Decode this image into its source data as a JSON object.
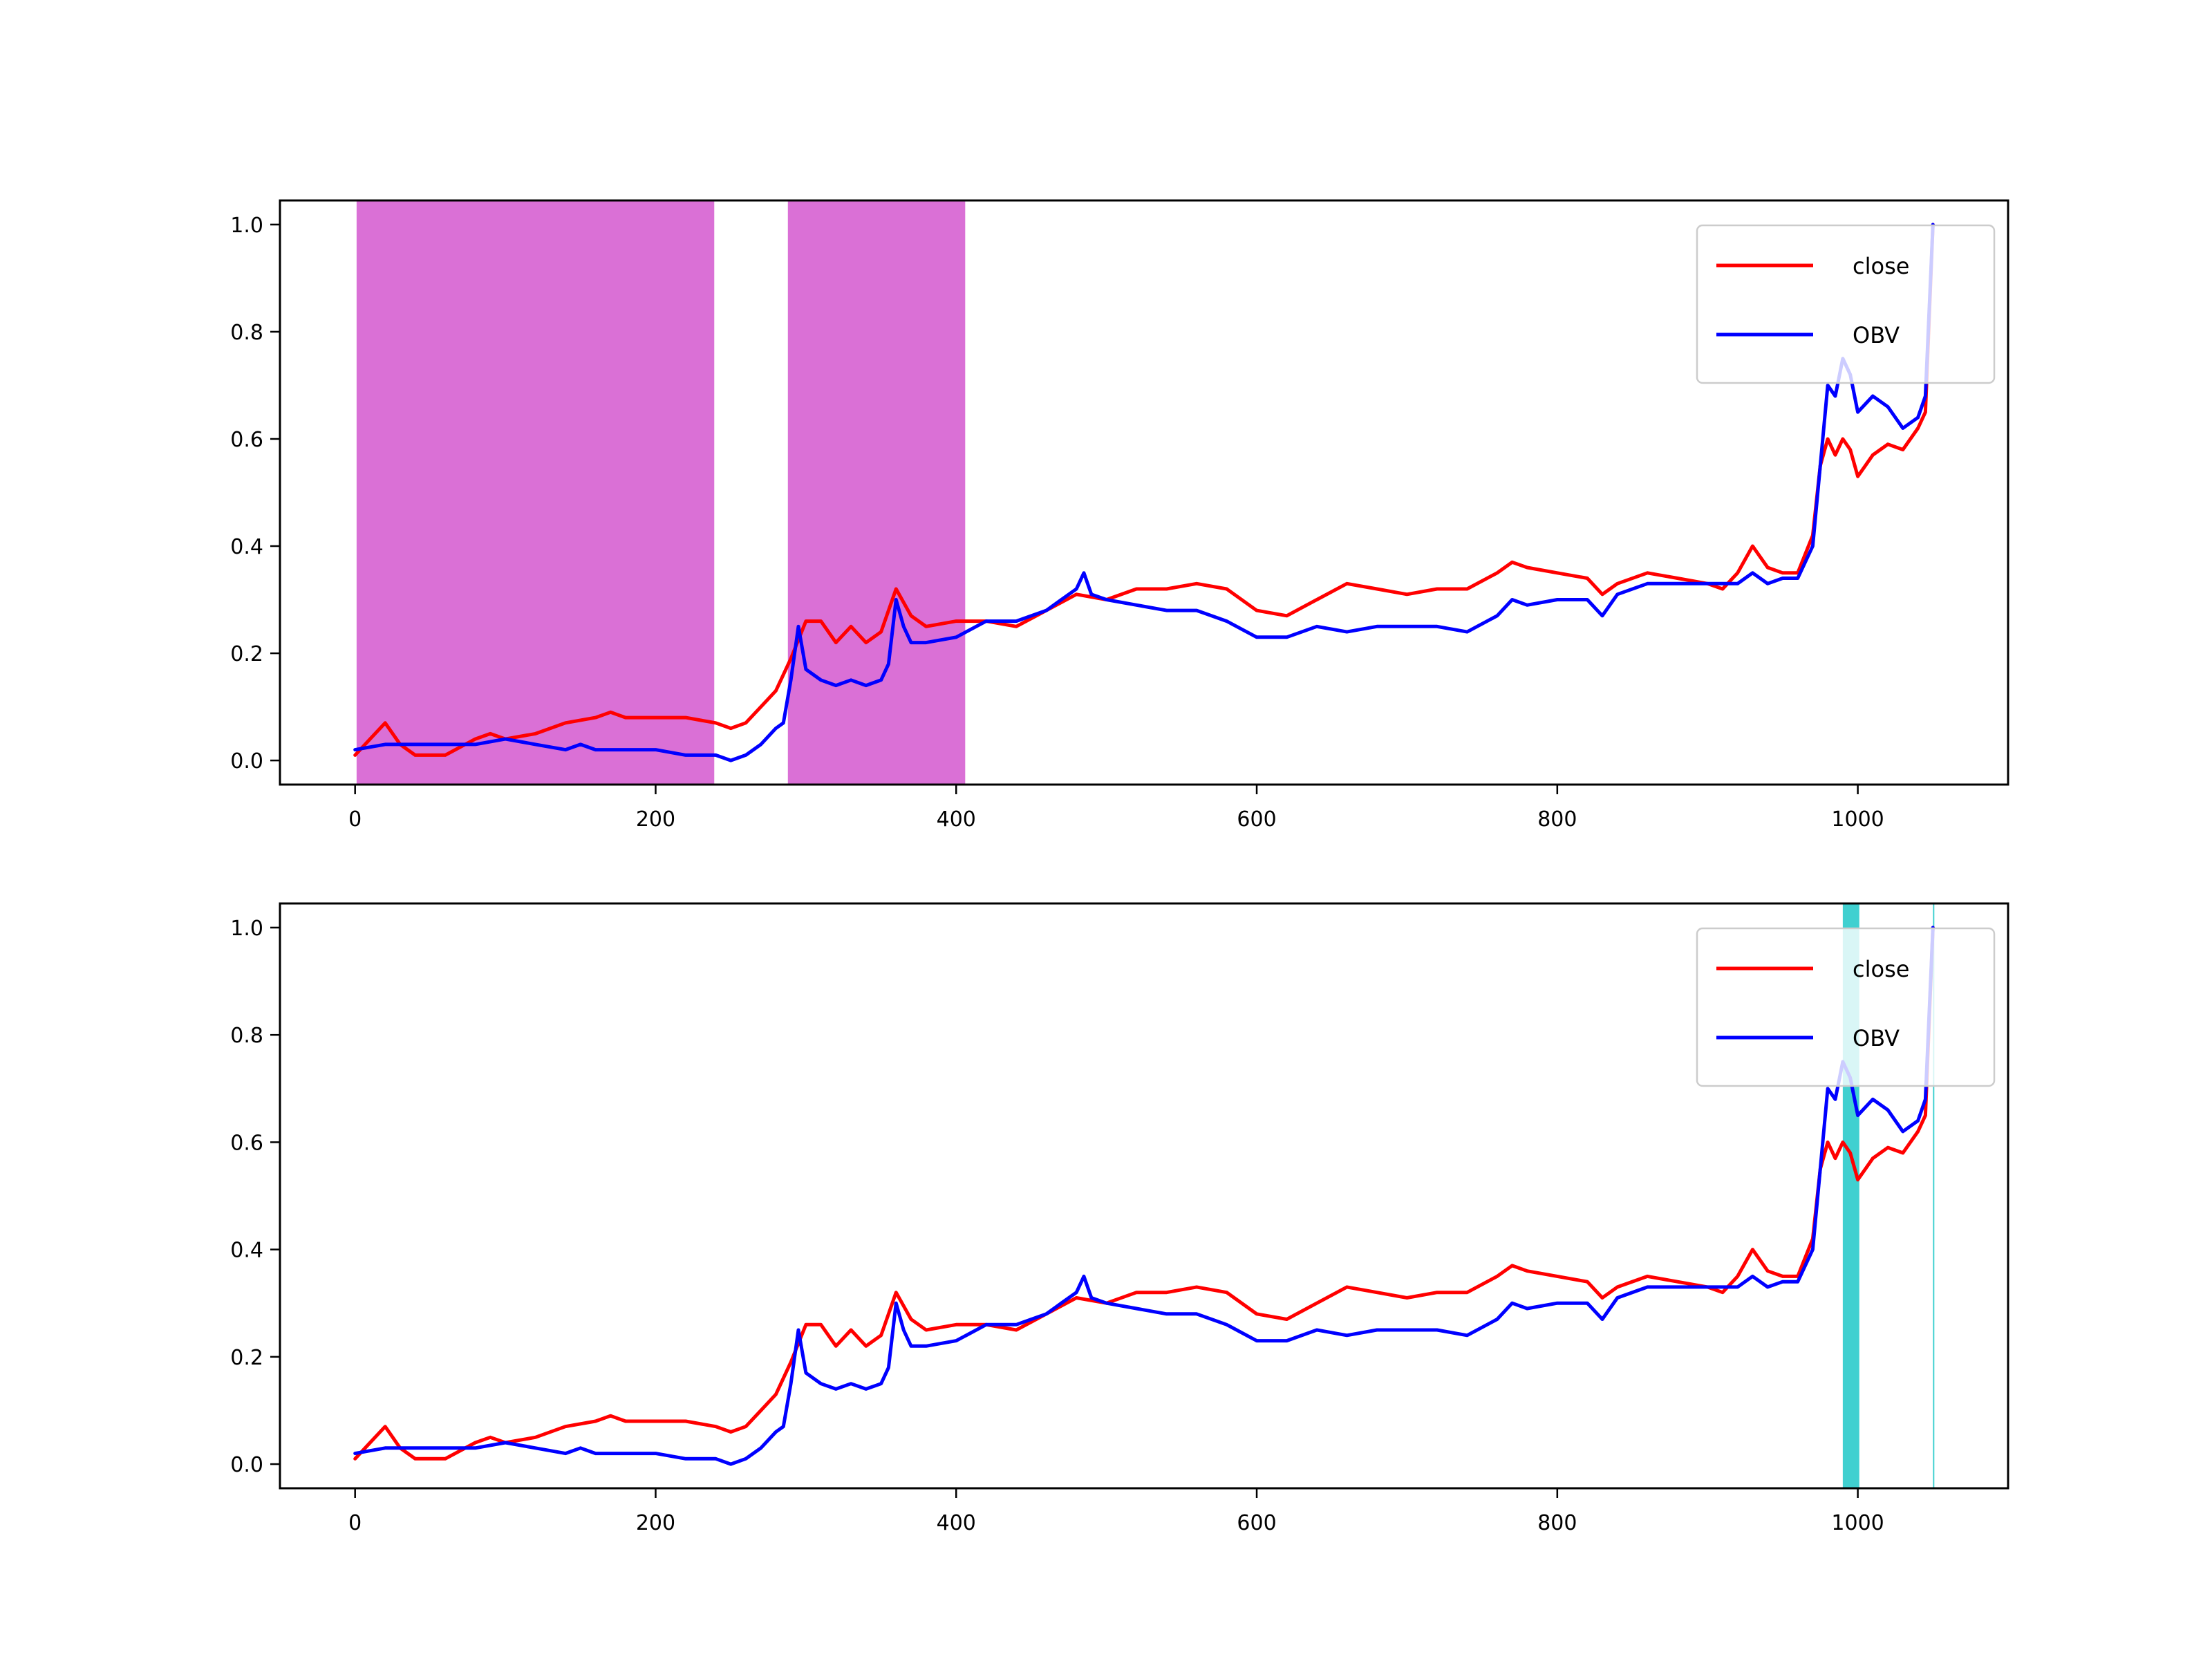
{
  "colors": {
    "close": "#ff0000",
    "obv": "#0000ff",
    "buy_region": "#da70d6",
    "sell_region": "#40d0d0",
    "frame": "#000000"
  },
  "chart_data": [
    {
      "type": "line",
      "title": "",
      "xlim": [
        -50,
        1100
      ],
      "ylim": [
        -0.045,
        1.045
      ],
      "x_ticks": [
        0,
        200,
        400,
        600,
        800,
        1000
      ],
      "y_ticks": [
        0.0,
        0.2,
        0.4,
        0.6,
        0.8,
        1.0
      ],
      "x_tick_labels": [
        "0",
        "200",
        "400",
        "600",
        "800",
        "1000"
      ],
      "y_tick_labels": [
        "0.0",
        "0.2",
        "0.4",
        "0.6",
        "0.8",
        "1.0"
      ],
      "legend": {
        "position": "top-right",
        "entries": [
          "close",
          "OBV"
        ]
      },
      "shaded_regions": [
        {
          "x_start": 1,
          "x_end": 239,
          "color_key": "buy_region"
        },
        {
          "x_start": 288,
          "x_end": 406,
          "color_key": "buy_region"
        }
      ],
      "series": [
        {
          "name": "close",
          "color_key": "close",
          "x": [
            0,
            10,
            20,
            30,
            40,
            60,
            80,
            90,
            100,
            120,
            140,
            160,
            170,
            180,
            200,
            220,
            240,
            250,
            260,
            270,
            280,
            290,
            300,
            310,
            320,
            330,
            340,
            350,
            360,
            370,
            380,
            400,
            420,
            440,
            460,
            480,
            500,
            520,
            540,
            560,
            580,
            600,
            620,
            640,
            660,
            680,
            700,
            720,
            740,
            760,
            770,
            780,
            800,
            820,
            830,
            840,
            860,
            880,
            900,
            910,
            920,
            930,
            940,
            950,
            960,
            970,
            975,
            980,
            985,
            990,
            995,
            1000,
            1005,
            1010,
            1020,
            1030,
            1040,
            1045,
            1050
          ],
          "values": [
            0.01,
            0.04,
            0.07,
            0.03,
            0.01,
            0.01,
            0.04,
            0.05,
            0.04,
            0.05,
            0.07,
            0.08,
            0.09,
            0.08,
            0.08,
            0.08,
            0.07,
            0.06,
            0.07,
            0.1,
            0.13,
            0.19,
            0.26,
            0.26,
            0.22,
            0.25,
            0.22,
            0.24,
            0.32,
            0.27,
            0.25,
            0.26,
            0.26,
            0.25,
            0.28,
            0.31,
            0.3,
            0.32,
            0.32,
            0.33,
            0.32,
            0.28,
            0.27,
            0.3,
            0.33,
            0.32,
            0.31,
            0.32,
            0.32,
            0.35,
            0.37,
            0.36,
            0.35,
            0.34,
            0.31,
            0.33,
            0.35,
            0.34,
            0.33,
            0.32,
            0.35,
            0.4,
            0.36,
            0.35,
            0.35,
            0.42,
            0.55,
            0.6,
            0.57,
            0.6,
            0.58,
            0.53,
            0.55,
            0.57,
            0.59,
            0.58,
            0.62,
            0.65,
            1.0
          ]
        },
        {
          "name": "OBV",
          "color_key": "obv",
          "x": [
            0,
            20,
            40,
            60,
            80,
            100,
            120,
            140,
            150,
            160,
            180,
            200,
            220,
            240,
            250,
            260,
            270,
            280,
            285,
            290,
            295,
            300,
            310,
            320,
            330,
            340,
            350,
            355,
            360,
            365,
            370,
            380,
            400,
            420,
            440,
            460,
            470,
            480,
            485,
            490,
            500,
            520,
            540,
            560,
            580,
            600,
            620,
            640,
            660,
            680,
            700,
            720,
            740,
            760,
            770,
            780,
            800,
            820,
            830,
            840,
            860,
            880,
            900,
            920,
            930,
            940,
            950,
            960,
            970,
            975,
            980,
            985,
            990,
            995,
            1000,
            1010,
            1020,
            1030,
            1040,
            1045,
            1050
          ],
          "values": [
            0.02,
            0.03,
            0.03,
            0.03,
            0.03,
            0.04,
            0.03,
            0.02,
            0.03,
            0.02,
            0.02,
            0.02,
            0.01,
            0.01,
            0.0,
            0.01,
            0.03,
            0.06,
            0.07,
            0.15,
            0.25,
            0.17,
            0.15,
            0.14,
            0.15,
            0.14,
            0.15,
            0.18,
            0.3,
            0.25,
            0.22,
            0.22,
            0.23,
            0.26,
            0.26,
            0.28,
            0.3,
            0.32,
            0.35,
            0.31,
            0.3,
            0.29,
            0.28,
            0.28,
            0.26,
            0.23,
            0.23,
            0.25,
            0.24,
            0.25,
            0.25,
            0.25,
            0.24,
            0.27,
            0.3,
            0.29,
            0.3,
            0.3,
            0.27,
            0.31,
            0.33,
            0.33,
            0.33,
            0.33,
            0.35,
            0.33,
            0.34,
            0.34,
            0.4,
            0.55,
            0.7,
            0.68,
            0.75,
            0.72,
            0.65,
            0.68,
            0.66,
            0.62,
            0.64,
            0.68,
            1.0
          ]
        }
      ]
    },
    {
      "type": "line",
      "title": "",
      "xlim": [
        -50,
        1100
      ],
      "ylim": [
        -0.045,
        1.045
      ],
      "x_ticks": [
        0,
        200,
        400,
        600,
        800,
        1000
      ],
      "y_ticks": [
        0.0,
        0.2,
        0.4,
        0.6,
        0.8,
        1.0
      ],
      "x_tick_labels": [
        "0",
        "200",
        "400",
        "600",
        "800",
        "1000"
      ],
      "y_tick_labels": [
        "0.0",
        "0.2",
        "0.4",
        "0.6",
        "0.8",
        "1.0"
      ],
      "legend": {
        "position": "top-right",
        "entries": [
          "close",
          "OBV"
        ]
      },
      "shaded_regions": [
        {
          "x_start": 990,
          "x_end": 1001,
          "color_key": "sell_region"
        },
        {
          "x_start": 1050,
          "x_end": 1050.5,
          "color_key": "sell_region"
        }
      ],
      "series": [
        {
          "name": "close",
          "color_key": "close",
          "x": [
            0,
            10,
            20,
            30,
            40,
            60,
            80,
            90,
            100,
            120,
            140,
            160,
            170,
            180,
            200,
            220,
            240,
            250,
            260,
            270,
            280,
            290,
            300,
            310,
            320,
            330,
            340,
            350,
            360,
            370,
            380,
            400,
            420,
            440,
            460,
            480,
            500,
            520,
            540,
            560,
            580,
            600,
            620,
            640,
            660,
            680,
            700,
            720,
            740,
            760,
            770,
            780,
            800,
            820,
            830,
            840,
            860,
            880,
            900,
            910,
            920,
            930,
            940,
            950,
            960,
            970,
            975,
            980,
            985,
            990,
            995,
            1000,
            1005,
            1010,
            1020,
            1030,
            1040,
            1045,
            1050
          ],
          "values": [
            0.01,
            0.04,
            0.07,
            0.03,
            0.01,
            0.01,
            0.04,
            0.05,
            0.04,
            0.05,
            0.07,
            0.08,
            0.09,
            0.08,
            0.08,
            0.08,
            0.07,
            0.06,
            0.07,
            0.1,
            0.13,
            0.19,
            0.26,
            0.26,
            0.22,
            0.25,
            0.22,
            0.24,
            0.32,
            0.27,
            0.25,
            0.26,
            0.26,
            0.25,
            0.28,
            0.31,
            0.3,
            0.32,
            0.32,
            0.33,
            0.32,
            0.28,
            0.27,
            0.3,
            0.33,
            0.32,
            0.31,
            0.32,
            0.32,
            0.35,
            0.37,
            0.36,
            0.35,
            0.34,
            0.31,
            0.33,
            0.35,
            0.34,
            0.33,
            0.32,
            0.35,
            0.4,
            0.36,
            0.35,
            0.35,
            0.42,
            0.55,
            0.6,
            0.57,
            0.6,
            0.58,
            0.53,
            0.55,
            0.57,
            0.59,
            0.58,
            0.62,
            0.65,
            1.0
          ]
        },
        {
          "name": "OBV",
          "color_key": "obv",
          "x": [
            0,
            20,
            40,
            60,
            80,
            100,
            120,
            140,
            150,
            160,
            180,
            200,
            220,
            240,
            250,
            260,
            270,
            280,
            285,
            290,
            295,
            300,
            310,
            320,
            330,
            340,
            350,
            355,
            360,
            365,
            370,
            380,
            400,
            420,
            440,
            460,
            470,
            480,
            485,
            490,
            500,
            520,
            540,
            560,
            580,
            600,
            620,
            640,
            660,
            680,
            700,
            720,
            740,
            760,
            770,
            780,
            800,
            820,
            830,
            840,
            860,
            880,
            900,
            920,
            930,
            940,
            950,
            960,
            970,
            975,
            980,
            985,
            990,
            995,
            1000,
            1010,
            1020,
            1030,
            1040,
            1045,
            1050
          ],
          "values": [
            0.02,
            0.03,
            0.03,
            0.03,
            0.03,
            0.04,
            0.03,
            0.02,
            0.03,
            0.02,
            0.02,
            0.02,
            0.01,
            0.01,
            0.0,
            0.01,
            0.03,
            0.06,
            0.07,
            0.15,
            0.25,
            0.17,
            0.15,
            0.14,
            0.15,
            0.14,
            0.15,
            0.18,
            0.3,
            0.25,
            0.22,
            0.22,
            0.23,
            0.26,
            0.26,
            0.28,
            0.3,
            0.32,
            0.35,
            0.31,
            0.3,
            0.29,
            0.28,
            0.28,
            0.26,
            0.23,
            0.23,
            0.25,
            0.24,
            0.25,
            0.25,
            0.25,
            0.24,
            0.27,
            0.3,
            0.29,
            0.3,
            0.3,
            0.27,
            0.31,
            0.33,
            0.33,
            0.33,
            0.33,
            0.35,
            0.33,
            0.34,
            0.34,
            0.4,
            0.55,
            0.7,
            0.68,
            0.75,
            0.72,
            0.65,
            0.68,
            0.66,
            0.62,
            0.64,
            0.68,
            1.0
          ]
        }
      ]
    }
  ]
}
